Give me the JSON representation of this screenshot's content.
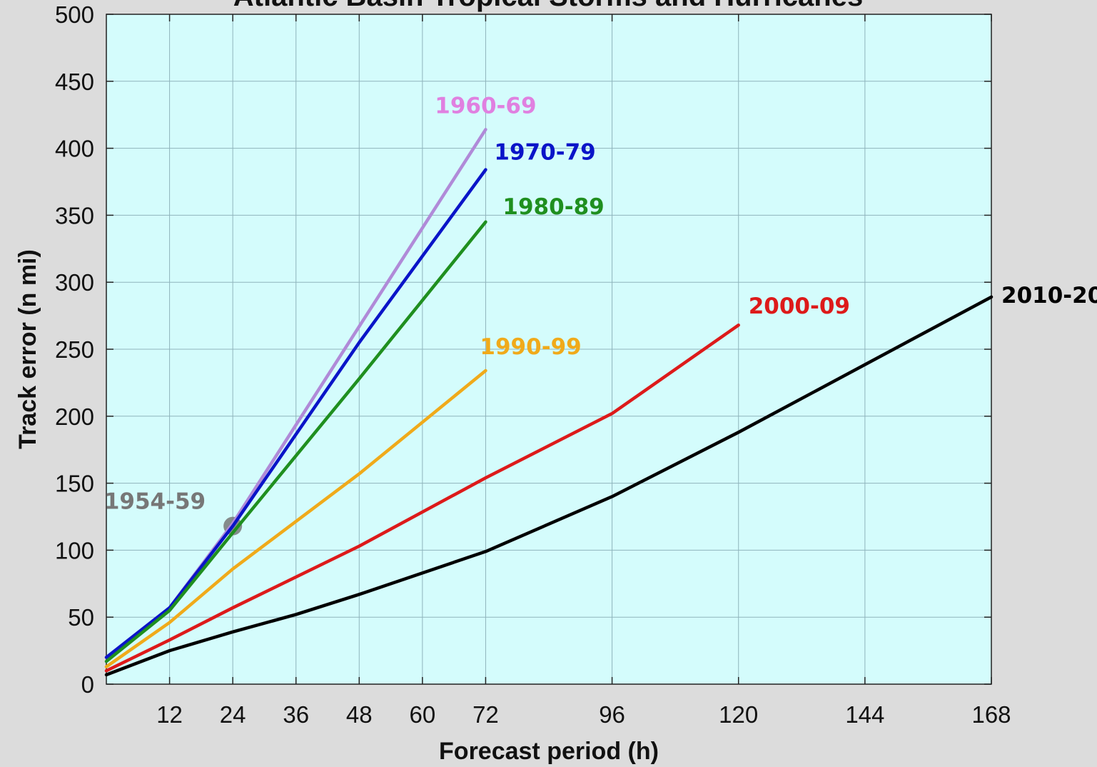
{
  "chart_data": {
    "type": "line",
    "title": "Atlantic Basin Tropical Storms and Hurricanes",
    "xlabel": "Forecast period (h)",
    "ylabel": "Track error (n mi)",
    "xlim": [
      0,
      168
    ],
    "ylim": [
      0,
      500
    ],
    "xticks": [
      12,
      24,
      36,
      48,
      60,
      72,
      96,
      120,
      144,
      168
    ],
    "yticks": [
      0,
      50,
      100,
      150,
      200,
      250,
      300,
      350,
      400,
      450,
      500
    ],
    "grid": true,
    "background_color": "#d4fcfc",
    "series": [
      {
        "name": "1954-59",
        "color": "#777777",
        "marker_only": true,
        "points": [
          [
            24,
            118
          ]
        ]
      },
      {
        "name": "1960-69",
        "color": "#b08ad8",
        "label_color": "#e080e0",
        "points": [
          [
            0,
            20
          ],
          [
            12,
            57
          ],
          [
            24,
            120
          ],
          [
            72,
            414
          ]
        ]
      },
      {
        "name": "1970-79",
        "color": "#0a14c8",
        "points": [
          [
            0,
            20
          ],
          [
            12,
            57
          ],
          [
            24,
            118
          ],
          [
            48,
            255
          ],
          [
            72,
            384
          ]
        ]
      },
      {
        "name": "1980-89",
        "color": "#1f8f1f",
        "points": [
          [
            0,
            17
          ],
          [
            12,
            55
          ],
          [
            24,
            113
          ],
          [
            48,
            228
          ],
          [
            72,
            345
          ]
        ]
      },
      {
        "name": "1990-99",
        "color": "#f0aa1a",
        "points": [
          [
            0,
            13
          ],
          [
            12,
            46
          ],
          [
            24,
            86
          ],
          [
            48,
            157
          ],
          [
            72,
            234
          ]
        ]
      },
      {
        "name": "2000-09",
        "color": "#dd1a1a",
        "points": [
          [
            0,
            10
          ],
          [
            12,
            33
          ],
          [
            24,
            57
          ],
          [
            48,
            103
          ],
          [
            72,
            154
          ],
          [
            96,
            202
          ],
          [
            120,
            268
          ]
        ]
      },
      {
        "name": "2010-20",
        "color": "#000000",
        "points": [
          [
            0,
            7
          ],
          [
            12,
            25
          ],
          [
            24,
            39
          ],
          [
            36,
            52
          ],
          [
            48,
            67
          ],
          [
            72,
            99
          ],
          [
            96,
            140
          ],
          [
            120,
            188
          ],
          [
            168,
            289
          ]
        ]
      }
    ]
  }
}
